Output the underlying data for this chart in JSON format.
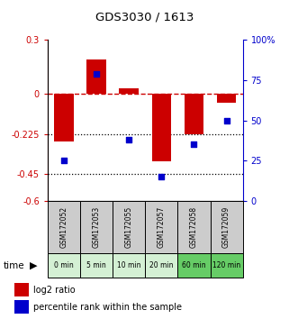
{
  "title": "GDS3030 / 1613",
  "samples": [
    "GSM172052",
    "GSM172053",
    "GSM172055",
    "GSM172057",
    "GSM172058",
    "GSM172059"
  ],
  "time_labels": [
    "0 min",
    "5 min",
    "10 min",
    "20 min",
    "60 min",
    "120 min"
  ],
  "log2_ratio": [
    -0.27,
    0.19,
    0.03,
    -0.38,
    -0.225,
    -0.05
  ],
  "percentile_rank": [
    25,
    79,
    38,
    15,
    35,
    50
  ],
  "ylim_left": [
    -0.6,
    0.3
  ],
  "ylim_right": [
    0,
    100
  ],
  "yticks_left": [
    0.3,
    0,
    -0.225,
    -0.45,
    -0.6
  ],
  "yticks_right": [
    100,
    75,
    50,
    25,
    0
  ],
  "hline_dashed": 0,
  "hline_dotted": [
    -0.225,
    -0.45
  ],
  "bar_color": "#cc0000",
  "dot_color": "#0000cc",
  "bar_width": 0.6,
  "dot_size": 25,
  "title_color": "#000000",
  "left_axis_color": "#cc0000",
  "right_axis_color": "#0000cc",
  "sample_box_color": "#cccccc",
  "time_box_colors": [
    "#d4f0d4",
    "#d4f0d4",
    "#d4f0d4",
    "#d4f0d4",
    "#66cc66",
    "#66cc66"
  ],
  "legend_bar_label": "log2 ratio",
  "legend_dot_label": "percentile rank within the sample",
  "fig_width": 3.21,
  "fig_height": 3.54,
  "dpi": 100
}
